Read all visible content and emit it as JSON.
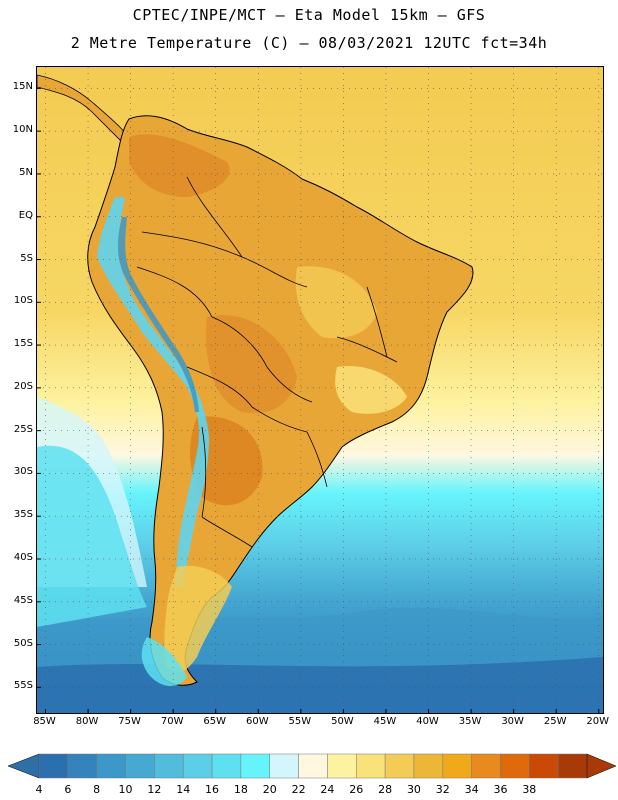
{
  "header": {
    "line1": "CPTEC/INPE/MCT –  Eta Model 15km – GFS",
    "line2": "2 Metre Temperature (C) – 08/03/2021 12UTC fct=34h"
  },
  "map": {
    "lat_labels": [
      "15N",
      "10N",
      "5N",
      "EQ",
      "5S",
      "10S",
      "15S",
      "20S",
      "25S",
      "30S",
      "35S",
      "40S",
      "45S",
      "50S",
      "55S"
    ],
    "lon_labels": [
      "85W",
      "80W",
      "75W",
      "70W",
      "65W",
      "60W",
      "55W",
      "50W",
      "45W",
      "40W",
      "35W",
      "30W",
      "25W",
      "20W"
    ],
    "lat_values": [
      15,
      10,
      5,
      0,
      -5,
      -10,
      -15,
      -20,
      -25,
      -30,
      -35,
      -40,
      -45,
      -50,
      -55
    ],
    "lon_values": [
      -85,
      -80,
      -75,
      -70,
      -65,
      -60,
      -55,
      -50,
      -45,
      -40,
      -35,
      -30,
      -25,
      -20
    ],
    "lat_range": [
      -58,
      17.5
    ],
    "lon_range": [
      -86,
      -19.5
    ]
  },
  "colorbar": {
    "labels": [
      "4",
      "6",
      "8",
      "10",
      "12",
      "14",
      "16",
      "18",
      "20",
      "22",
      "24",
      "26",
      "28",
      "30",
      "32",
      "34",
      "36",
      "38"
    ],
    "colors": [
      "#2a6fae",
      "#3483bd",
      "#3c98c8",
      "#45a9d2",
      "#52bcdc",
      "#5dcee7",
      "#5ee0f0",
      "#66f4fc",
      "#d3f6fc",
      "#fff7e0",
      "#fdf2a0",
      "#f9e27a",
      "#f3cc55",
      "#ecb636",
      "#f0a81c",
      "#e88a1e",
      "#df6a0c",
      "#c84a04",
      "#a83a08"
    ]
  },
  "colors": {
    "ocean_warm": "#f6d25a",
    "land_hot": "#e8a637",
    "land_very_hot": "#df8a28",
    "andes_cold": "#5fd4ee",
    "ocean_cold": "#2f7eb8"
  }
}
